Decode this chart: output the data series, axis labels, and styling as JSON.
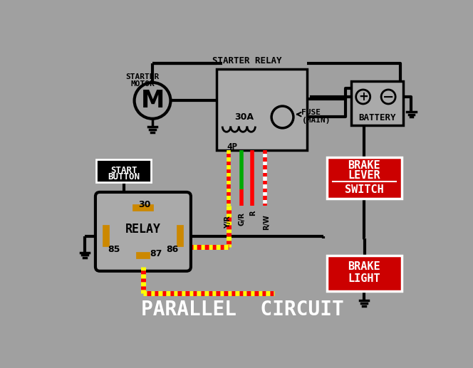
{
  "bg_color": "#a0a0a0",
  "title": "PARALLEL  CIRCUIT",
  "title_color": "#ffffff",
  "title_fontsize": 20,
  "labels": {
    "starter_relay": "STARTER RELAY",
    "starter_motor_l1": "STARTER",
    "starter_motor_l2": "MOTOR",
    "start_button_l1": "START",
    "start_button_l2": "BUTTON",
    "relay": "RELAY",
    "brake_lever_l1": "BRAKE",
    "brake_lever_l2": "LEVER",
    "brake_lever_l3": "SWITCH",
    "brake_light_l1": "BRAKE",
    "brake_light_l2": "LIGHT",
    "battery": "BATTERY",
    "fuse_l1": "FUSE",
    "fuse_l2": "(MAIN)",
    "30A": "30A",
    "4P": "4P",
    "t30": "30",
    "t85": "85",
    "t86": "86",
    "t87": "87"
  },
  "colors": {
    "wire_black": "#000000",
    "wire_yellow": "#ffff00",
    "wire_red": "#ff0000",
    "wire_green": "#00aa00",
    "wire_white": "#ffffff",
    "terminal_gold": "#cc8800",
    "relay_box_fill": "#aaaaaa",
    "battery_fill": "#aaaaaa",
    "brake_lever_fill": "#cc0000",
    "brake_light_fill": "#cc0000",
    "start_button_fill": "#000000",
    "text_white": "#ffffff",
    "text_black": "#000000"
  }
}
